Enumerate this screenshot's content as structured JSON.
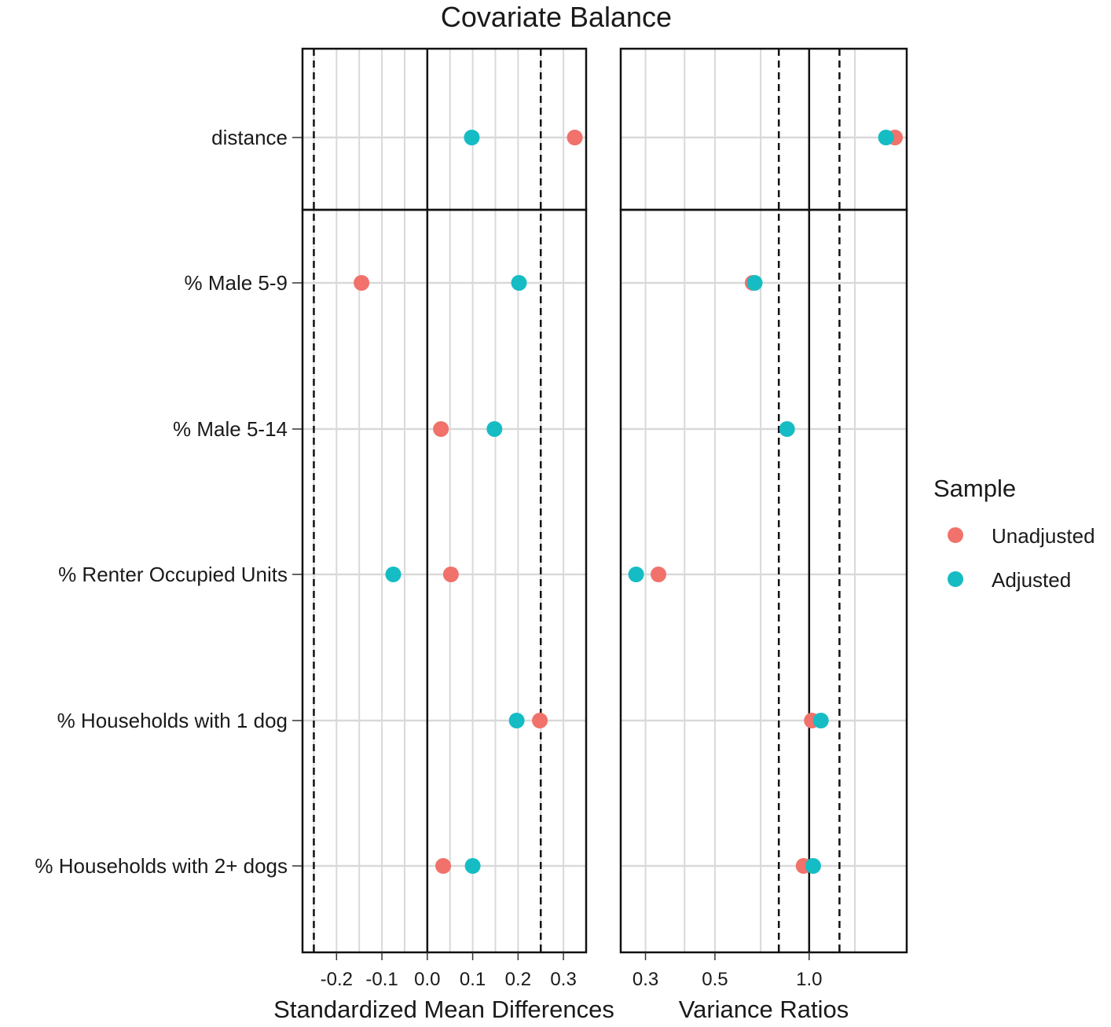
{
  "chart_data": {
    "type": "scatter",
    "title": "Covariate Balance",
    "covariates": [
      "distance",
      "% Male 5-9",
      "% Male 5-14",
      "% Renter Occupied Units",
      "% Households with 1 dog",
      "% Households with 2+ dogs"
    ],
    "groups": [
      [
        "distance"
      ],
      [
        "% Male 5-9",
        "% Male 5-14",
        "% Renter Occupied Units",
        "% Households with 1 dog",
        "% Households with 2+ dogs"
      ]
    ],
    "legend": {
      "title": "Sample",
      "position": "right"
    },
    "colors": {
      "Unadjusted": "#F0726B",
      "Adjusted": "#16BCC4"
    },
    "panels": [
      {
        "id": "smd",
        "xlabel": "Standardized Mean Differences",
        "scale": "linear",
        "xlim": [
          -0.275,
          0.35
        ],
        "ticks": [
          -0.2,
          -0.1,
          0.0,
          0.1,
          0.2,
          0.3
        ],
        "tick_labels": [
          "-0.2",
          "-0.1",
          "0.0",
          "0.1",
          "0.2",
          "0.3"
        ],
        "minor_ticks": [
          -0.25,
          -0.15,
          -0.05,
          0.05,
          0.15,
          0.25
        ],
        "solid_line": 0,
        "dashed_lines": [
          -0.25,
          0.25
        ],
        "series": [
          {
            "name": "Unadjusted",
            "values": [
              0.325,
              -0.145,
              0.03,
              0.052,
              0.248,
              0.035
            ]
          },
          {
            "name": "Adjusted",
            "values": [
              0.098,
              0.202,
              0.148,
              -0.075,
              0.197,
              0.1
            ]
          }
        ]
      },
      {
        "id": "vr",
        "xlabel": "Variance Ratios",
        "scale": "log",
        "xlim": [
          0.25,
          2.05
        ],
        "ticks": [
          0.3,
          0.5,
          1.0
        ],
        "tick_labels": [
          "0.3",
          "0.5",
          "1.0"
        ],
        "minor_gridlines": [
          0.4,
          0.7,
          1.4
        ],
        "solid_line": 1,
        "dashed_lines": [
          0.8,
          1.25
        ],
        "series": [
          {
            "name": "Unadjusted",
            "values": [
              1.88,
              0.66,
              null,
              0.33,
              1.02,
              0.96
            ]
          },
          {
            "name": "Adjusted",
            "values": [
              1.76,
              0.67,
              0.85,
              0.28,
              1.09,
              1.03
            ]
          }
        ]
      }
    ]
  }
}
